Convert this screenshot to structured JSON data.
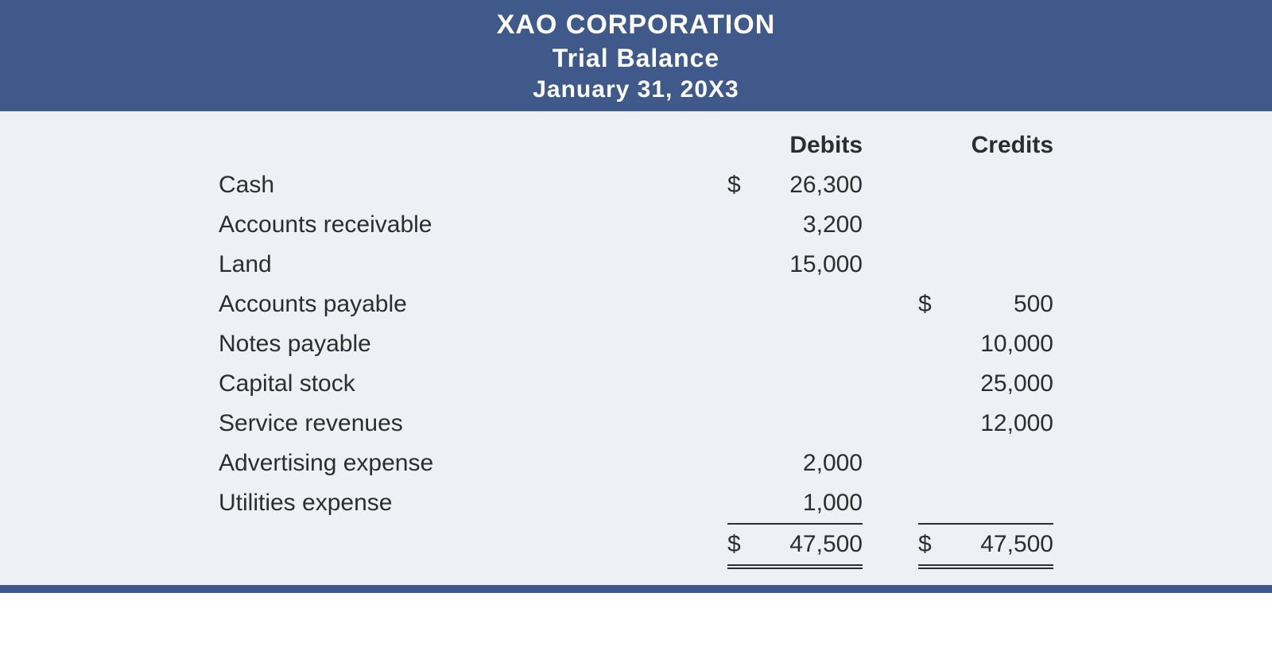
{
  "header": {
    "company": "XAO CORPORATION",
    "report": "Trial Balance",
    "date": "January 31, 20X3"
  },
  "columns": {
    "debit_label": "Debits",
    "credit_label": "Credits"
  },
  "rows": [
    {
      "account": "Cash",
      "debit_sym": "$",
      "debit": "26,300",
      "credit_sym": "",
      "credit": ""
    },
    {
      "account": "Accounts receivable",
      "debit_sym": "",
      "debit": "3,200",
      "credit_sym": "",
      "credit": ""
    },
    {
      "account": "Land",
      "debit_sym": "",
      "debit": "15,000",
      "credit_sym": "",
      "credit": ""
    },
    {
      "account": "Accounts payable",
      "debit_sym": "",
      "debit": "",
      "credit_sym": "$",
      "credit": "500"
    },
    {
      "account": "Notes payable",
      "debit_sym": "",
      "debit": "",
      "credit_sym": "",
      "credit": "10,000"
    },
    {
      "account": "Capital stock",
      "debit_sym": "",
      "debit": "",
      "credit_sym": "",
      "credit": "25,000"
    },
    {
      "account": "Service revenues",
      "debit_sym": "",
      "debit": "",
      "credit_sym": "",
      "credit": "12,000"
    },
    {
      "account": "Advertising expense",
      "debit_sym": "",
      "debit": "2,000",
      "credit_sym": "",
      "credit": ""
    },
    {
      "account": "Utilities expense",
      "debit_sym": "",
      "debit": "1,000",
      "credit_sym": "",
      "credit": ""
    }
  ],
  "totals": {
    "debit_sym": "$",
    "debit": "47,500",
    "credit_sym": "$",
    "credit": "47,500"
  },
  "style": {
    "header_bg": "#3f5a8a",
    "body_bg": "#eef0f5",
    "text_color": "#2d2d2d",
    "header_text": "#ffffff",
    "font_size_body": 30,
    "font_size_header": 34,
    "rule_color": "#2d2d2d"
  }
}
